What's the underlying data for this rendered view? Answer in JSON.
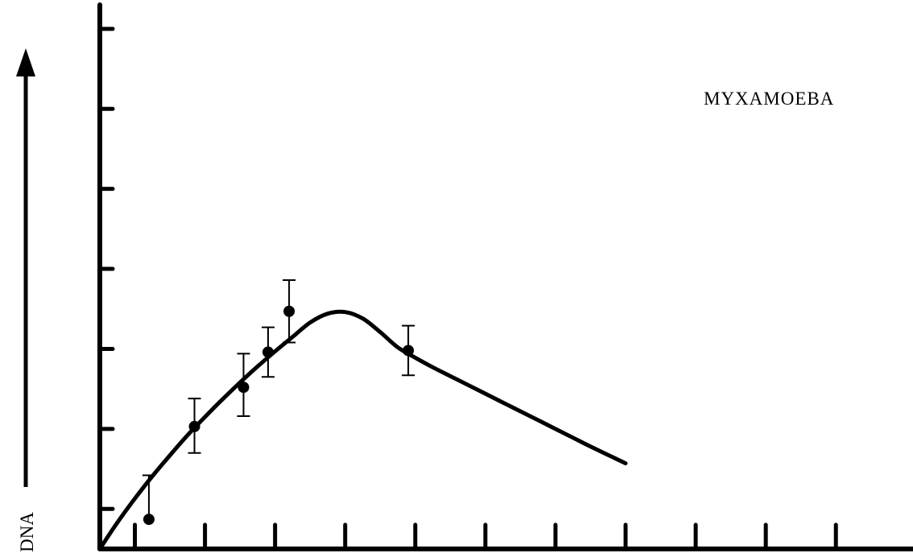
{
  "chart_data": {
    "type": "line",
    "title": "",
    "xlabel": "",
    "ylabel": "DNA",
    "annotations": [
      "MYXAMOEBA"
    ],
    "grid": false,
    "legend": "none",
    "xlim": [
      0,
      11.6
    ],
    "ylim": [
      0,
      6.8
    ],
    "x_ticks": [
      0.5,
      1.5,
      2.5,
      3.5,
      4.5,
      5.5,
      6.5,
      7.5,
      8.5,
      9.5,
      10.5
    ],
    "y_ticks": [
      0.5,
      1.5,
      2.5,
      3.5,
      4.5,
      5.5,
      6.5
    ],
    "series": [
      {
        "kind": "points_with_error_bars",
        "x": [
          0.7,
          1.35,
          2.05,
          2.4,
          2.7,
          4.4
        ],
        "y": [
          0.37,
          1.53,
          2.02,
          2.46,
          2.97,
          2.48
        ],
        "err_low": [
          0,
          0.33,
          0.36,
          0.31,
          0.39,
          0.31
        ],
        "err_high": [
          0.55,
          0.35,
          0.42,
          0.31,
          0.39,
          0.31
        ]
      },
      {
        "kind": "fitted_curve",
        "x": [
          0,
          0.25,
          0.5,
          0.75,
          1.0,
          1.25,
          1.5,
          1.75,
          2.0,
          2.25,
          2.5,
          2.75,
          3.0,
          3.25,
          3.5,
          3.75,
          4.0,
          4.25,
          4.5,
          4.75,
          5.0,
          5.25,
          5.5,
          5.75,
          6.0,
          6.25,
          6.5,
          6.75,
          7.0,
          7.5
        ],
        "y": [
          0.0,
          0.33,
          0.63,
          0.91,
          1.17,
          1.42,
          1.65,
          1.87,
          2.08,
          2.28,
          2.47,
          2.65,
          2.83,
          2.94,
          2.96,
          2.88,
          2.71,
          2.52,
          2.39,
          2.27,
          2.16,
          2.05,
          1.94,
          1.83,
          1.72,
          1.61,
          1.5,
          1.39,
          1.28,
          1.07
        ]
      }
    ]
  }
}
